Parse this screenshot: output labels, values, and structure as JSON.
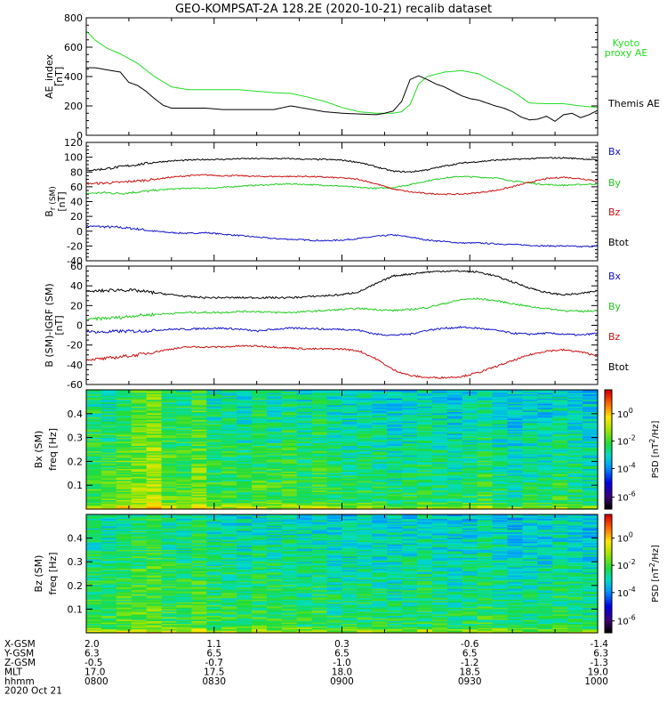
{
  "title": "GEO-KOMPSAT-2A 128.2E (2020-10-21) recalib dataset",
  "colors": {
    "black": "#000000",
    "green": "#22cc22",
    "red": "#cc1111",
    "blue": "#1111cc",
    "kyoto": "#22dd22"
  },
  "chart_data": [
    {
      "type": "line",
      "id": "ae",
      "ylabel": [
        "AE_index",
        "[nT]"
      ],
      "ylim": [
        0,
        800
      ],
      "yticks": [
        0,
        200,
        400,
        600,
        800
      ],
      "xlim": [
        0,
        120
      ],
      "series": [
        {
          "name": "Kyoto proxy AE",
          "legend": [
            "Kyoto",
            "proxy AE"
          ],
          "color": "#22dd22",
          "x": [
            0,
            2,
            5,
            8,
            12,
            16,
            20,
            24,
            28,
            32,
            36,
            40,
            44,
            48,
            52,
            56,
            60,
            64,
            68,
            72,
            74,
            76,
            78,
            80,
            84,
            88,
            92,
            96,
            100,
            104,
            108,
            112,
            116,
            120
          ],
          "y": [
            710,
            650,
            590,
            555,
            490,
            400,
            330,
            310,
            310,
            310,
            310,
            300,
            290,
            285,
            260,
            230,
            190,
            160,
            150,
            150,
            160,
            210,
            350,
            400,
            430,
            440,
            420,
            360,
            300,
            220,
            215,
            215,
            200,
            190
          ]
        },
        {
          "name": "Themis AE",
          "legend": [
            "Themis AE"
          ],
          "color": "#000000",
          "x": [
            0,
            2,
            4,
            6,
            8,
            10,
            12,
            14,
            16,
            18,
            20,
            24,
            28,
            32,
            36,
            40,
            44,
            48,
            52,
            56,
            60,
            64,
            68,
            70,
            72,
            74,
            76,
            78,
            80,
            82,
            84,
            86,
            88,
            90,
            92,
            94,
            96,
            98,
            100,
            102,
            104,
            106,
            108,
            110,
            112,
            114,
            116,
            118,
            120
          ],
          "y": [
            460,
            460,
            450,
            440,
            430,
            360,
            340,
            300,
            250,
            205,
            185,
            185,
            185,
            175,
            175,
            175,
            175,
            200,
            180,
            160,
            150,
            145,
            140,
            150,
            165,
            230,
            380,
            405,
            380,
            350,
            330,
            300,
            270,
            250,
            240,
            220,
            200,
            185,
            160,
            125,
            105,
            110,
            130,
            95,
            140,
            150,
            120,
            140,
            170
          ]
        }
      ]
    },
    {
      "type": "line",
      "id": "b",
      "ylabel": [
        "B",
        "[nT]"
      ],
      "ylabel_sub": "r (SM)",
      "ylim": [
        -40,
        120
      ],
      "yticks": [
        -40,
        -20,
        0,
        20,
        40,
        60,
        80,
        100,
        120
      ],
      "xlim": [
        0,
        120
      ],
      "series": [
        {
          "name": "Bx",
          "color": "#1111cc",
          "x": [
            0,
            4,
            8,
            12,
            16,
            20,
            24,
            28,
            32,
            36,
            40,
            44,
            48,
            52,
            56,
            60,
            64,
            68,
            72,
            76,
            80,
            84,
            88,
            92,
            96,
            100,
            104,
            108,
            112,
            116,
            120
          ],
          "y": [
            7,
            6,
            5,
            3,
            0,
            -2,
            -3,
            -2,
            -4,
            -6,
            -8,
            -10,
            -11,
            -12,
            -13,
            -12,
            -10,
            -7,
            -5,
            -8,
            -12,
            -14,
            -16,
            -16,
            -17,
            -18,
            -19,
            -20,
            -20,
            -21,
            -20
          ]
        },
        {
          "name": "By",
          "color": "#22cc22",
          "x": [
            0,
            4,
            8,
            12,
            16,
            20,
            24,
            28,
            32,
            36,
            40,
            44,
            48,
            52,
            56,
            60,
            64,
            68,
            72,
            76,
            80,
            84,
            88,
            92,
            96,
            100,
            104,
            108,
            112,
            116,
            120
          ],
          "y": [
            51,
            52,
            51,
            53,
            55,
            57,
            58,
            58,
            59,
            61,
            62,
            63,
            64,
            63,
            62,
            61,
            59,
            58,
            59,
            63,
            68,
            72,
            74,
            73,
            72,
            68,
            65,
            63,
            62,
            63,
            64
          ]
        },
        {
          "name": "Bz",
          "color": "#cc1111",
          "x": [
            0,
            4,
            8,
            12,
            16,
            20,
            24,
            28,
            32,
            36,
            40,
            44,
            48,
            52,
            56,
            60,
            64,
            68,
            72,
            76,
            80,
            84,
            88,
            92,
            96,
            100,
            104,
            108,
            112,
            116,
            120
          ],
          "y": [
            64,
            65,
            66,
            68,
            70,
            73,
            75,
            76,
            75,
            75,
            74,
            74,
            74,
            74,
            73,
            72,
            70,
            64,
            57,
            53,
            51,
            50,
            50,
            52,
            55,
            60,
            66,
            71,
            73,
            71,
            68
          ]
        },
        {
          "name": "Btot",
          "color": "#000000",
          "x": [
            0,
            4,
            8,
            12,
            16,
            20,
            24,
            28,
            32,
            36,
            40,
            44,
            48,
            52,
            56,
            60,
            64,
            68,
            72,
            76,
            80,
            84,
            88,
            92,
            96,
            100,
            104,
            108,
            112,
            116,
            120
          ],
          "y": [
            82,
            84,
            87,
            90,
            93,
            95,
            96,
            97,
            97,
            98,
            98,
            98,
            98,
            97,
            97,
            96,
            93,
            87,
            81,
            80,
            83,
            88,
            92,
            94,
            96,
            97,
            98,
            99,
            99,
            98,
            96
          ]
        }
      ],
      "legend": [
        "Bx",
        "By",
        "Bz",
        "Btot"
      ]
    },
    {
      "type": "line",
      "id": "db",
      "ylabel": [
        "B (SM)-IGRF (SM)",
        "[nT]"
      ],
      "ylim": [
        -60,
        60
      ],
      "yticks": [
        -60,
        -40,
        -20,
        0,
        20,
        40,
        60
      ],
      "xlim": [
        0,
        120
      ],
      "series": [
        {
          "name": "Bx",
          "color": "#1111cc",
          "x": [
            0,
            4,
            8,
            12,
            16,
            20,
            24,
            28,
            32,
            36,
            40,
            44,
            48,
            52,
            56,
            60,
            64,
            68,
            72,
            76,
            80,
            84,
            88,
            92,
            96,
            100,
            104,
            108,
            112,
            116,
            120
          ],
          "y": [
            -6,
            -7,
            -6,
            -6,
            -5,
            -4,
            -4,
            -3,
            -3,
            -4,
            -6,
            -4,
            -3,
            -3,
            -4,
            -4,
            -5,
            -9,
            -10,
            -9,
            -5,
            -3,
            -2,
            -3,
            -5,
            -8,
            -9,
            -8,
            -9,
            -10,
            -8
          ]
        },
        {
          "name": "By",
          "color": "#22cc22",
          "x": [
            0,
            4,
            8,
            12,
            16,
            20,
            24,
            28,
            32,
            36,
            40,
            44,
            48,
            52,
            56,
            60,
            64,
            68,
            72,
            76,
            80,
            84,
            88,
            92,
            96,
            100,
            104,
            108,
            112,
            116,
            120
          ],
          "y": [
            6,
            7,
            8,
            10,
            11,
            12,
            13,
            13,
            13,
            14,
            14,
            13,
            13,
            14,
            15,
            16,
            17,
            16,
            15,
            16,
            18,
            22,
            26,
            27,
            25,
            22,
            19,
            17,
            15,
            14,
            15
          ]
        },
        {
          "name": "Bz",
          "color": "#cc1111",
          "x": [
            0,
            4,
            8,
            12,
            16,
            20,
            24,
            28,
            32,
            36,
            40,
            44,
            48,
            52,
            56,
            60,
            64,
            68,
            72,
            76,
            80,
            84,
            88,
            92,
            96,
            100,
            104,
            108,
            112,
            116,
            120
          ],
          "y": [
            -35,
            -34,
            -32,
            -30,
            -27,
            -24,
            -22,
            -22,
            -22,
            -21,
            -21,
            -22,
            -23,
            -24,
            -24,
            -24,
            -26,
            -34,
            -45,
            -51,
            -53,
            -53,
            -52,
            -48,
            -42,
            -36,
            -30,
            -26,
            -25,
            -27,
            -31
          ]
        },
        {
          "name": "Btot",
          "color": "#000000",
          "x": [
            0,
            4,
            8,
            12,
            16,
            20,
            24,
            28,
            32,
            36,
            40,
            44,
            48,
            52,
            56,
            60,
            64,
            68,
            72,
            76,
            80,
            84,
            88,
            92,
            96,
            100,
            104,
            108,
            112,
            116,
            120
          ],
          "y": [
            34,
            35,
            36,
            35,
            33,
            31,
            29,
            28,
            28,
            28,
            28,
            28,
            28,
            29,
            30,
            31,
            34,
            42,
            50,
            52,
            54,
            55,
            55,
            54,
            50,
            44,
            38,
            33,
            31,
            32,
            35
          ]
        }
      ],
      "legend": [
        "Bx",
        "By",
        "Bz",
        "Btot"
      ]
    },
    {
      "type": "heatmap",
      "id": "spec_bx",
      "ylabel": [
        "Bx (SM)",
        "freq [Hz]"
      ],
      "ylim": [
        0,
        0.5
      ],
      "yticks": [
        0.1,
        0.2,
        0.3,
        0.4
      ],
      "ytick_labels": [
        "0.1",
        "0.2",
        "0.3",
        "0.4"
      ],
      "colorbar_label": "PSD [nT^2/Hz]",
      "colorbar_ticks": [
        "10^0",
        "10^-2",
        "10^-4",
        "10^-6"
      ],
      "log_psd_profile": [
        -2.0,
        -2.1,
        -1.7,
        -1.5,
        -1.2,
        -1.9,
        -2.0,
        -1.6,
        -2.2,
        -2.1,
        -2.3,
        -2.0,
        -2.2,
        -2.0,
        -2.3,
        -2.1,
        -2.4,
        -2.5,
        -2.3,
        -2.4,
        -2.6,
        -2.5,
        -2.3,
        -2.5,
        -2.6,
        -2.4,
        -2.2,
        -2.5,
        -2.7,
        -2.5,
        -2.6,
        -2.3,
        -2.5,
        -2.7
      ]
    },
    {
      "type": "heatmap",
      "id": "spec_bz",
      "ylabel": [
        "Bz (SM)",
        "freq [Hz]"
      ],
      "ylim": [
        0,
        0.5
      ],
      "yticks": [
        0.1,
        0.2,
        0.3,
        0.4
      ],
      "ytick_labels": [
        "0.1",
        "0.2",
        "0.3",
        "0.4"
      ],
      "colorbar_label": "PSD [nT^2/Hz]",
      "colorbar_ticks": [
        "10^0",
        "10^-2",
        "10^-4",
        "10^-6"
      ],
      "log_psd_profile": [
        -2.2,
        -2.2,
        -2.0,
        -1.9,
        -1.8,
        -2.1,
        -2.2,
        -2.0,
        -2.3,
        -2.3,
        -2.4,
        -2.2,
        -2.3,
        -2.2,
        -2.4,
        -2.3,
        -2.5,
        -2.5,
        -2.4,
        -2.5,
        -2.6,
        -2.5,
        -2.4,
        -2.5,
        -2.6,
        -2.5,
        -2.3,
        -2.5,
        -2.7,
        -2.6,
        -2.6,
        -2.4,
        -2.5,
        -2.7
      ]
    }
  ],
  "x_axis": {
    "xlim": [
      0,
      120
    ],
    "tick_positions": [
      0,
      30,
      60,
      90,
      120
    ],
    "rows": [
      {
        "label": "X-GSM",
        "values": [
          "2.0",
          "1.1",
          "0.3",
          "-0.6",
          "-1.4"
        ]
      },
      {
        "label": "Y-GSM",
        "values": [
          "6.3",
          "6.5",
          "6.5",
          "6.5",
          "6.3"
        ]
      },
      {
        "label": "Z-GSM",
        "values": [
          "-0.5",
          "-0.7",
          "-1.0",
          "-1.2",
          "-1.3"
        ]
      },
      {
        "label": "MLT",
        "values": [
          "17.0",
          "17.5",
          "18.0",
          "18.5",
          "19.0"
        ]
      },
      {
        "label": "hhmm",
        "values": [
          "0800",
          "0830",
          "0900",
          "0930",
          "1000"
        ]
      }
    ],
    "date": "2020 Oct 21"
  }
}
